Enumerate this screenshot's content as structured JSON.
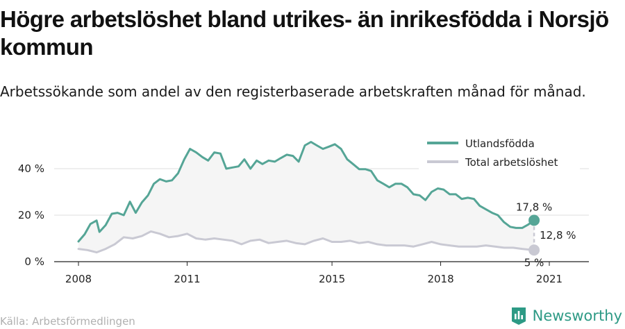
{
  "title": "Högre arbetslöshet bland utrikes- än inrikesfödda i Norsjö kommun",
  "subtitle": "Arbetssökande som andel av den registerbaserade arbetskraften månad för månad.",
  "source": "Källa: Arbetsförmedlingen",
  "brand": {
    "name": "Newsworthy",
    "logo_icon": "newsworthy-logo-icon"
  },
  "colors": {
    "foreign": "#55a596",
    "total": "#c9c9d3",
    "fill": "#f5f5f5",
    "grid": "#dddddd",
    "brand": "#2d9a85"
  },
  "chart_data": {
    "type": "line",
    "y_unit": "%",
    "ylim": [
      0,
      55
    ],
    "xlim": [
      2008,
      2022.33
    ],
    "grid": true,
    "legend_position": "top-right",
    "y_ticks": [
      {
        "value": 0,
        "label": "0 %"
      },
      {
        "value": 20,
        "label": "20 %"
      },
      {
        "value": 40,
        "label": "40 %"
      }
    ],
    "x_ticks": [
      {
        "value": 2008,
        "label": "2008"
      },
      {
        "value": 2011,
        "label": "2011"
      },
      {
        "value": 2015,
        "label": "2015"
      },
      {
        "value": 2018,
        "label": "2018"
      },
      {
        "value": 2021,
        "label": "2021"
      }
    ],
    "series": [
      {
        "name": "Utlandsfödda",
        "color": "#55a596",
        "points": [
          [
            2008.0,
            8.7
          ],
          [
            2008.17,
            11.8
          ],
          [
            2008.33,
            16.2
          ],
          [
            2008.5,
            17.7
          ],
          [
            2008.58,
            12.8
          ],
          [
            2008.75,
            15.7
          ],
          [
            2008.92,
            20.6
          ],
          [
            2009.08,
            21.0
          ],
          [
            2009.25,
            20.0
          ],
          [
            2009.42,
            25.8
          ],
          [
            2009.58,
            21.0
          ],
          [
            2009.75,
            25.5
          ],
          [
            2009.92,
            28.5
          ],
          [
            2010.08,
            33.5
          ],
          [
            2010.25,
            35.5
          ],
          [
            2010.42,
            34.5
          ],
          [
            2010.58,
            35.0
          ],
          [
            2010.75,
            38.0
          ],
          [
            2010.92,
            44.0
          ],
          [
            2011.08,
            48.5
          ],
          [
            2011.25,
            47.0
          ],
          [
            2011.42,
            45.0
          ],
          [
            2011.58,
            43.5
          ],
          [
            2011.75,
            47.0
          ],
          [
            2011.92,
            46.5
          ],
          [
            2012.08,
            40.0
          ],
          [
            2012.25,
            40.5
          ],
          [
            2012.42,
            41.0
          ],
          [
            2012.58,
            44.0
          ],
          [
            2012.75,
            40.0
          ],
          [
            2012.92,
            43.5
          ],
          [
            2013.08,
            42.0
          ],
          [
            2013.25,
            43.5
          ],
          [
            2013.42,
            43.0
          ],
          [
            2013.58,
            44.5
          ],
          [
            2013.75,
            46.0
          ],
          [
            2013.92,
            45.5
          ],
          [
            2014.08,
            43.0
          ],
          [
            2014.25,
            50.0
          ],
          [
            2014.42,
            51.5
          ],
          [
            2014.58,
            50.0
          ],
          [
            2014.75,
            48.5
          ],
          [
            2014.92,
            49.5
          ],
          [
            2015.08,
            50.5
          ],
          [
            2015.25,
            48.5
          ],
          [
            2015.42,
            44.0
          ],
          [
            2015.58,
            42.0
          ],
          [
            2015.75,
            39.8
          ],
          [
            2015.92,
            39.8
          ],
          [
            2016.08,
            39.0
          ],
          [
            2016.25,
            35.0
          ],
          [
            2016.42,
            33.5
          ],
          [
            2016.58,
            32.0
          ],
          [
            2016.75,
            33.5
          ],
          [
            2016.92,
            33.5
          ],
          [
            2017.08,
            32.0
          ],
          [
            2017.25,
            29.0
          ],
          [
            2017.42,
            28.5
          ],
          [
            2017.58,
            26.5
          ],
          [
            2017.75,
            30.0
          ],
          [
            2017.92,
            31.5
          ],
          [
            2018.08,
            31.0
          ],
          [
            2018.25,
            29.0
          ],
          [
            2018.42,
            29.0
          ],
          [
            2018.58,
            27.0
          ],
          [
            2018.75,
            27.5
          ],
          [
            2018.92,
            27.0
          ],
          [
            2019.08,
            24.0
          ],
          [
            2019.25,
            22.5
          ],
          [
            2019.42,
            21.0
          ],
          [
            2019.58,
            20.0
          ],
          [
            2019.75,
            17.0
          ],
          [
            2019.92,
            15.0
          ],
          [
            2020.08,
            14.5
          ],
          [
            2020.25,
            14.5
          ],
          [
            2020.42,
            16.0
          ],
          [
            2020.58,
            17.8
          ]
        ]
      },
      {
        "name": "Total arbetslöshet",
        "color": "#c9c9d3",
        "points": [
          [
            2008.0,
            5.5
          ],
          [
            2008.25,
            5.0
          ],
          [
            2008.5,
            4.0
          ],
          [
            2008.75,
            5.5
          ],
          [
            2009.0,
            7.5
          ],
          [
            2009.25,
            10.5
          ],
          [
            2009.5,
            10.0
          ],
          [
            2009.75,
            11.0
          ],
          [
            2010.0,
            13.0
          ],
          [
            2010.25,
            12.0
          ],
          [
            2010.5,
            10.5
          ],
          [
            2010.75,
            11.0
          ],
          [
            2011.0,
            12.0
          ],
          [
            2011.25,
            10.0
          ],
          [
            2011.5,
            9.5
          ],
          [
            2011.75,
            10.0
          ],
          [
            2012.0,
            9.5
          ],
          [
            2012.25,
            9.0
          ],
          [
            2012.5,
            7.5
          ],
          [
            2012.75,
            9.0
          ],
          [
            2013.0,
            9.5
          ],
          [
            2013.25,
            8.0
          ],
          [
            2013.5,
            8.5
          ],
          [
            2013.75,
            9.0
          ],
          [
            2014.0,
            8.0
          ],
          [
            2014.25,
            7.5
          ],
          [
            2014.5,
            9.0
          ],
          [
            2014.75,
            10.0
          ],
          [
            2015.0,
            8.5
          ],
          [
            2015.25,
            8.5
          ],
          [
            2015.5,
            9.0
          ],
          [
            2015.75,
            8.0
          ],
          [
            2016.0,
            8.5
          ],
          [
            2016.25,
            7.5
          ],
          [
            2016.5,
            7.0
          ],
          [
            2016.75,
            7.0
          ],
          [
            2017.0,
            7.0
          ],
          [
            2017.25,
            6.5
          ],
          [
            2017.5,
            7.5
          ],
          [
            2017.75,
            8.5
          ],
          [
            2018.0,
            7.5
          ],
          [
            2018.25,
            7.0
          ],
          [
            2018.5,
            6.5
          ],
          [
            2018.75,
            6.5
          ],
          [
            2019.0,
            6.5
          ],
          [
            2019.25,
            7.0
          ],
          [
            2019.5,
            6.5
          ],
          [
            2019.75,
            6.0
          ],
          [
            2020.0,
            6.0
          ],
          [
            2020.25,
            5.5
          ],
          [
            2020.58,
            5.0
          ]
        ]
      }
    ],
    "end_labels": [
      {
        "series": "Utlandsfödda",
        "value": 17.8,
        "label": "17,8 %"
      },
      {
        "series": "Total arbetslöshet",
        "value": 5.0,
        "label": "5 %"
      }
    ],
    "difference_label": "12,8 %"
  }
}
